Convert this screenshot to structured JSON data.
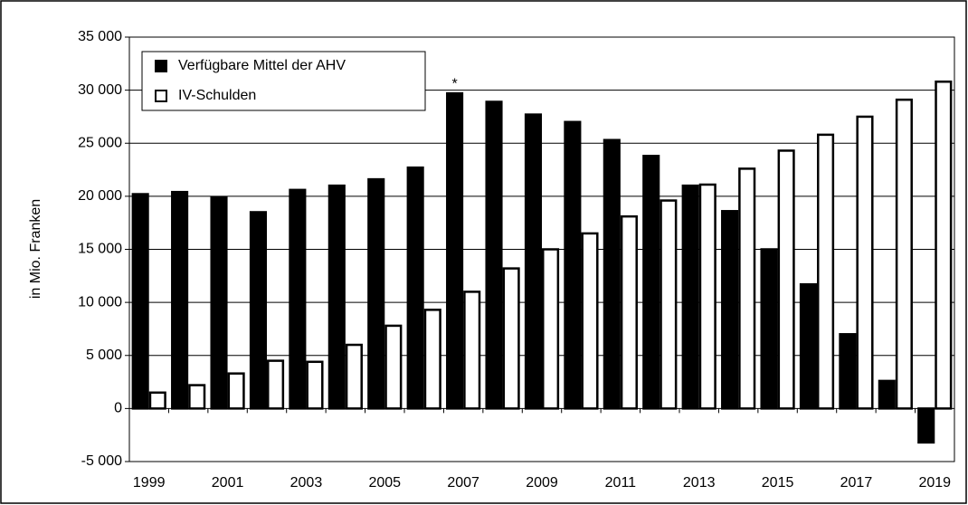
{
  "chart_data": {
    "type": "bar",
    "y_label": "in Mio. Franken",
    "annotation": "*",
    "categories": [
      "1999",
      null,
      "2001",
      null,
      "2003",
      null,
      "2005",
      null,
      "2007",
      null,
      "2009",
      null,
      "2011",
      null,
      "2013",
      null,
      "2015",
      null,
      "2017",
      null,
      "2019"
    ],
    "series": [
      {
        "name": "Verfügbare Mittel der AHV",
        "color": "#000000",
        "values": [
          20200,
          20400,
          19900,
          18500,
          20600,
          21000,
          21600,
          22700,
          29700,
          28900,
          27700,
          27000,
          25300,
          23800,
          21000,
          18600,
          15000,
          11700,
          7000,
          2600,
          -3200
        ]
      },
      {
        "name": "IV-Schulden",
        "color": "#ffffff",
        "values": [
          1500,
          2200,
          3300,
          4500,
          4400,
          6000,
          7800,
          9300,
          11000,
          13200,
          15000,
          16500,
          18100,
          19600,
          21100,
          22600,
          24300,
          25800,
          27500,
          29100,
          30800
        ]
      }
    ],
    "ylim": [
      -5000,
      35000
    ],
    "yticks": [
      {
        "value": -5000,
        "label": "-5 000"
      },
      0,
      {
        "value": 5000,
        "label": "5 000"
      },
      {
        "value": 10000,
        "label": "10 000"
      },
      {
        "value": 15000,
        "label": "15 000"
      },
      {
        "value": 20000,
        "label": "20 000"
      },
      {
        "value": 25000,
        "label": "25 000"
      },
      {
        "value": 30000,
        "label": "30 000"
      },
      {
        "value": 35000,
        "label": "35 000"
      }
    ],
    "grid": true
  }
}
